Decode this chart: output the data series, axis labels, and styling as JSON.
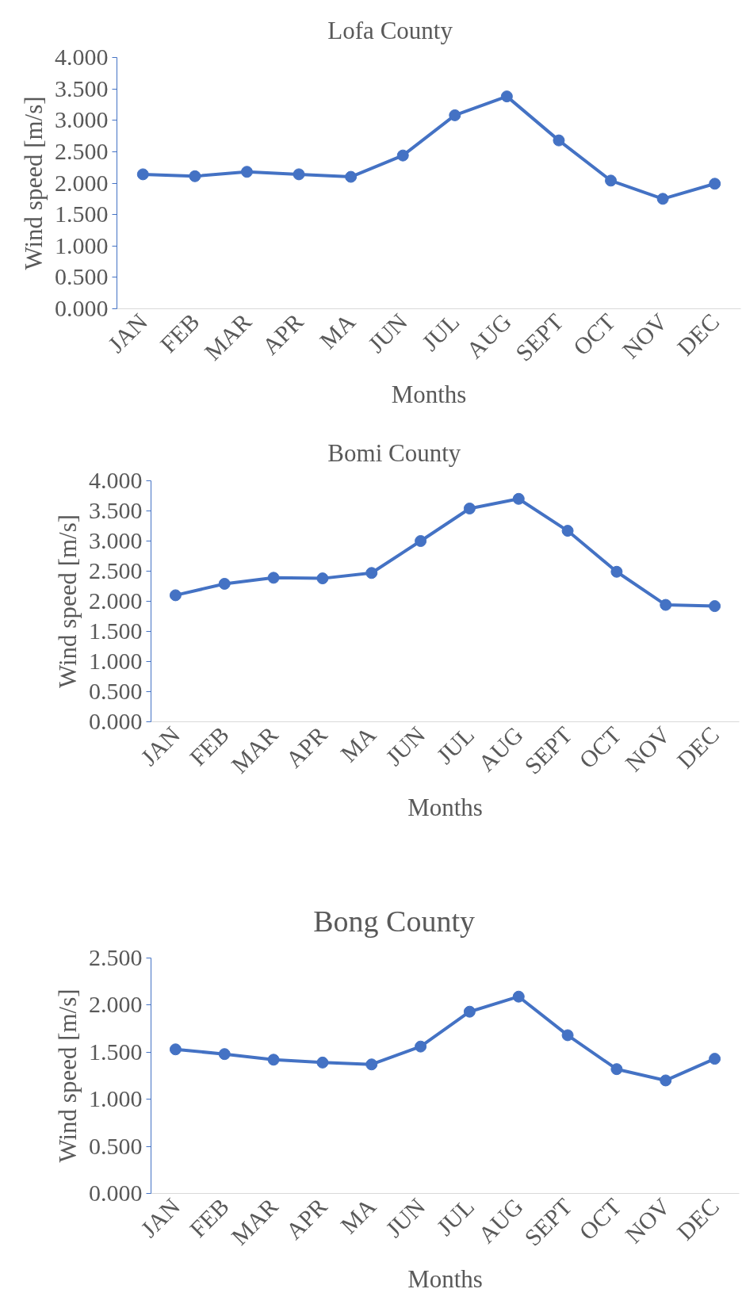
{
  "chart_data": [
    {
      "type": "line",
      "title": "Lofa County",
      "xlabel": "Months",
      "ylabel": "Wind speed [m/s]",
      "categories": [
        "JAN",
        "FEB",
        "MAR",
        "APR",
        "MA",
        "JUN",
        "JUL",
        "AUG",
        "SEPT",
        "OCT",
        "NOV",
        "DEC"
      ],
      "series": [
        {
          "color": "#4472c4",
          "values": [
            2.14,
            2.11,
            2.18,
            2.14,
            2.1,
            2.44,
            3.08,
            3.38,
            2.68,
            2.04,
            1.75,
            1.99
          ]
        }
      ],
      "ylim": [
        0,
        4
      ],
      "yticks": [
        {
          "value": 0,
          "label": "0.000"
        },
        {
          "value": 0.5,
          "label": "0.500"
        },
        {
          "value": 1,
          "label": "1.000"
        },
        {
          "value": 1.5,
          "label": "1.500"
        },
        {
          "value": 2,
          "label": "2.000"
        },
        {
          "value": 2.5,
          "label": "2.500"
        },
        {
          "value": 3,
          "label": "3.000"
        },
        {
          "value": 3.5,
          "label": "3.500"
        },
        {
          "value": 4,
          "label": "4.000"
        }
      ],
      "marker": "circle",
      "line_style": "solid"
    },
    {
      "type": "line",
      "title": "Bomi County",
      "xlabel": "Months",
      "ylabel": "Wind speed [m/s]",
      "categories": [
        "JAN",
        "FEB",
        "MAR",
        "APR",
        "MA",
        "JUN",
        "JUL",
        "AUG",
        "SEPT",
        "OCT",
        "NOV",
        "DEC"
      ],
      "series": [
        {
          "color": "#4472c4",
          "values": [
            2.1,
            2.29,
            2.39,
            2.38,
            2.47,
            3.0,
            3.54,
            3.7,
            3.17,
            2.49,
            1.94,
            1.92
          ]
        }
      ],
      "ylim": [
        0,
        4
      ],
      "yticks": [
        {
          "value": 0,
          "label": "0.000"
        },
        {
          "value": 0.5,
          "label": "0.500"
        },
        {
          "value": 1,
          "label": "1.000"
        },
        {
          "value": 1.5,
          "label": "1.500"
        },
        {
          "value": 2,
          "label": "2.000"
        },
        {
          "value": 2.5,
          "label": "2.500"
        },
        {
          "value": 3,
          "label": "3.000"
        },
        {
          "value": 3.5,
          "label": "3.500"
        },
        {
          "value": 4,
          "label": "4.000"
        }
      ],
      "marker": "circle",
      "line_style": "solid"
    },
    {
      "type": "line",
      "title": "Bong County",
      "xlabel": "Months",
      "ylabel": "Wind speed [m/s]",
      "categories": [
        "JAN",
        "FEB",
        "MAR",
        "APR",
        "MA",
        "JUN",
        "JUL",
        "AUG",
        "SEPT",
        "OCT",
        "NOV",
        "DEC"
      ],
      "series": [
        {
          "color": "#4472c4",
          "values": [
            1.53,
            1.48,
            1.42,
            1.39,
            1.37,
            1.56,
            1.93,
            2.09,
            1.68,
            1.32,
            1.2,
            1.43
          ]
        }
      ],
      "ylim": [
        0,
        2.5
      ],
      "yticks": [
        {
          "value": 0,
          "label": "0.000"
        },
        {
          "value": 0.5,
          "label": "0.500"
        },
        {
          "value": 1,
          "label": "1.000"
        },
        {
          "value": 1.5,
          "label": "1.500"
        },
        {
          "value": 2,
          "label": "2.000"
        },
        {
          "value": 2.5,
          "label": "2.500"
        }
      ],
      "marker": "circle",
      "line_style": "solid"
    }
  ]
}
